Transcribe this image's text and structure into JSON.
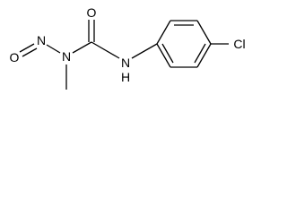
{
  "atoms": [
    {
      "label": "O"
    },
    {
      "label": "N"
    },
    {
      "label": "N"
    },
    {
      "label": "O"
    },
    {
      "label": "N"
    },
    {
      "label": "H"
    },
    {
      "label": "Cl"
    }
  ]
}
